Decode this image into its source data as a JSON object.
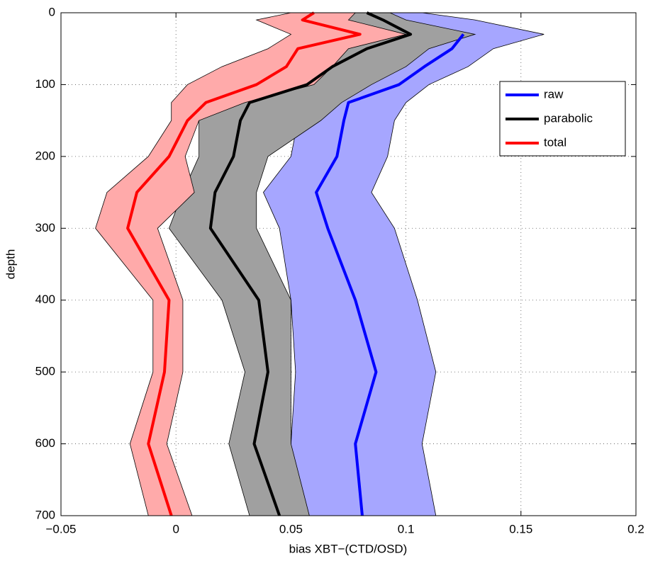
{
  "chart_data": {
    "type": "line",
    "xlabel": "bias XBT−(CTD/OSD)",
    "ylabel": "depth",
    "y": [
      0,
      10,
      30,
      50,
      75,
      100,
      125,
      150,
      200,
      250,
      300,
      400,
      500,
      600,
      700
    ],
    "series": [
      {
        "name": "raw",
        "color": "#0000ff",
        "band_color": "#a6a6ff",
        "values": [
          null,
          null,
          0.125,
          0.12,
          0.108,
          0.097,
          0.075,
          0.073,
          0.07,
          0.061,
          0.066,
          0.078,
          0.087,
          0.078,
          0.081
        ],
        "lower": [
          0.085,
          0.09,
          0.1,
          0.09,
          0.075,
          0.068,
          0.06,
          0.053,
          0.05,
          0.038,
          0.045,
          0.05,
          0.052,
          0.05,
          0.05
        ],
        "upper": [
          0.107,
          0.13,
          0.16,
          0.138,
          0.127,
          0.11,
          0.1,
          0.095,
          0.092,
          0.085,
          0.095,
          0.105,
          0.113,
          0.107,
          0.113
        ]
      },
      {
        "name": "parabolic",
        "color": "#000000",
        "band_color": "#a0a0a0",
        "values": [
          0.083,
          0.09,
          0.102,
          0.083,
          0.068,
          0.057,
          0.032,
          0.028,
          0.025,
          0.017,
          0.015,
          0.036,
          0.04,
          0.034,
          0.045
        ],
        "lower": [
          0.07,
          0.07,
          0.08,
          0.065,
          0.055,
          0.04,
          0.022,
          0.01,
          0.01,
          0.003,
          -0.003,
          0.02,
          0.03,
          0.023,
          0.032
        ],
        "upper": [
          0.093,
          0.1,
          0.13,
          0.11,
          0.1,
          0.085,
          0.072,
          0.063,
          0.04,
          0.035,
          0.035,
          0.05,
          0.05,
          0.05,
          0.058
        ]
      },
      {
        "name": "total",
        "color": "#ff0000",
        "band_color": "#ffaaaa",
        "values": [
          0.06,
          0.055,
          0.08,
          0.053,
          0.048,
          0.035,
          0.013,
          0.005,
          -0.003,
          -0.017,
          -0.021,
          -0.003,
          -0.005,
          -0.012,
          -0.002
        ],
        "lower": [
          0.05,
          0.035,
          0.05,
          0.04,
          0.02,
          0.005,
          -0.002,
          -0.002,
          -0.012,
          -0.03,
          -0.035,
          -0.01,
          -0.01,
          -0.02,
          -0.012
        ],
        "upper": [
          0.078,
          0.075,
          0.1,
          0.075,
          0.068,
          0.06,
          0.03,
          0.01,
          0.004,
          0.008,
          -0.008,
          0.003,
          0.003,
          -0.004,
          0.007
        ]
      }
    ],
    "xlim": [
      -0.05,
      0.2
    ],
    "xticks": [
      {
        "value": -0.05,
        "label": "−0.05"
      },
      0,
      0.05,
      0.1,
      0.15,
      0.2
    ],
    "ylim": [
      0,
      700
    ],
    "yticks": [
      0,
      100,
      200,
      300,
      400,
      500,
      600,
      700
    ],
    "y_inverted": true,
    "grid": true,
    "legend": "upper-right"
  }
}
